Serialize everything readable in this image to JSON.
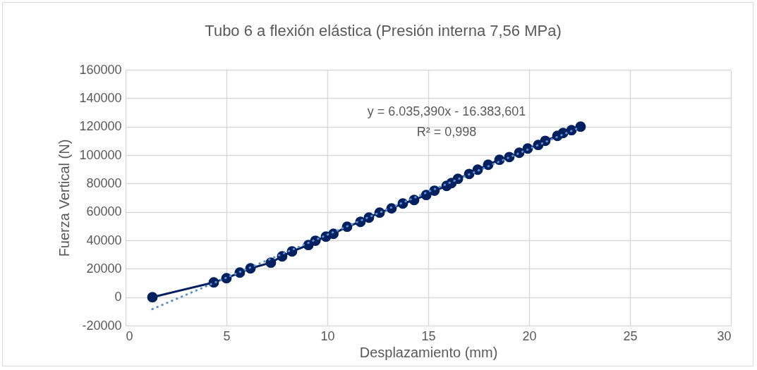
{
  "chart_data": {
    "type": "line",
    "title": "Tubo 6 a flexión elástica (Presión interna 7,56 MPa)",
    "xlabel": "Desplazamiento (mm)",
    "ylabel": "Fuerza Vertical (N)",
    "x": [
      1.33,
      4.37,
      5.0,
      5.66,
      6.19,
      7.2,
      7.76,
      8.25,
      9.06,
      9.41,
      9.93,
      10.3,
      10.98,
      11.64,
      12.06,
      12.59,
      13.18,
      13.74,
      14.3,
      14.9,
      15.31,
      15.91,
      16.15,
      16.47,
      17.03,
      17.45,
      17.97,
      18.53,
      19.02,
      19.51,
      19.93,
      20.45,
      20.8,
      21.4,
      21.68,
      22.1,
      22.55
    ],
    "series": [
      {
        "color": "#002060",
        "marker": "circle",
        "line_style": "solid",
        "values": [
          0,
          10400,
          13400,
          17300,
          20300,
          24300,
          28700,
          32200,
          36700,
          39700,
          42600,
          44600,
          49600,
          53000,
          56000,
          59500,
          62500,
          65900,
          68400,
          71900,
          74900,
          78300,
          80300,
          83300,
          86700,
          89700,
          93200,
          96700,
          98600,
          101600,
          104600,
          107100,
          110000,
          113500,
          115500,
          117500,
          120000
        ]
      },
      {
        "type": "line",
        "color": "#5b8fd0",
        "marker": "none",
        "line_style": "dotted",
        "x": [
          1.33,
          22.55
        ],
        "values": [
          -8400,
          119700
        ]
      }
    ],
    "annotations": [
      "y = 6.035,390x - 16.383,601",
      "R² = 0,998"
    ],
    "xlim": [
      0,
      30
    ],
    "xticks": [
      0,
      5,
      10,
      15,
      20,
      25,
      30
    ],
    "ylim": [
      -20000,
      160000
    ],
    "yticks": [
      -20000,
      0,
      20000,
      40000,
      60000,
      80000,
      100000,
      120000,
      140000,
      160000
    ],
    "grid": true
  }
}
